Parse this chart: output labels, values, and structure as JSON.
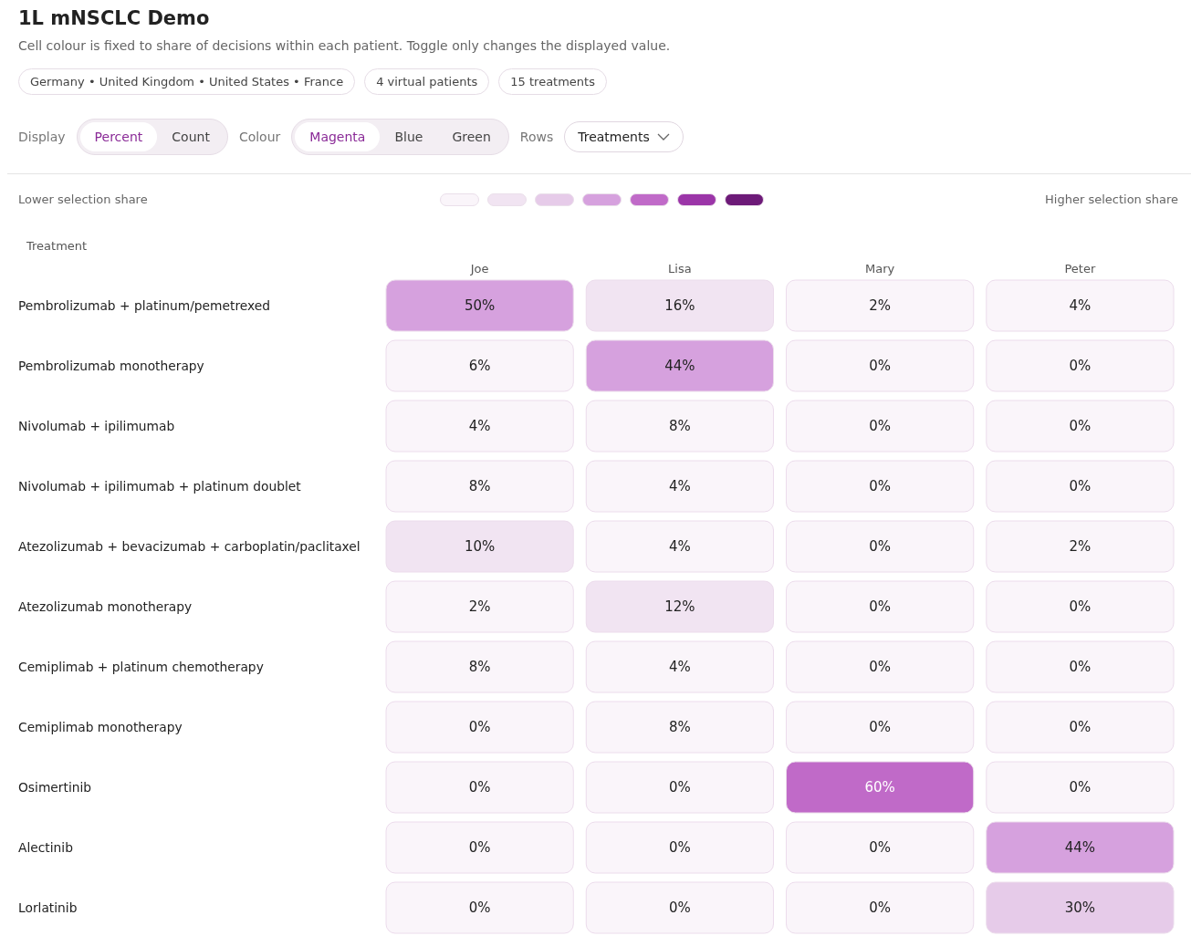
{
  "chart_data": {
    "type": "heatmap",
    "title": "1L mNSCLC Demo",
    "subtitle": "Cell colour is fixed to share of decisions within each patient. Toggle only changes the displayed value.",
    "ylabel": "Treatment",
    "categories": [
      "Joe",
      "Lisa",
      "Mary",
      "Peter"
    ],
    "y_categories": [
      "Pembrolizumab + platinum/pemetrexed",
      "Pembrolizumab monotherapy",
      "Nivolumab + ipilimumab",
      "Nivolumab + ipilimumab + platinum doublet",
      "Atezolizumab + bevacizumab + carboplatin/paclitaxel",
      "Atezolizumab monotherapy",
      "Cemiplimab + platinum chemotherapy",
      "Cemiplimab monotherapy",
      "Osimertinib",
      "Alectinib",
      "Lorlatinib"
    ],
    "cells": [
      [
        50,
        16,
        2,
        4
      ],
      [
        6,
        44,
        0,
        0
      ],
      [
        4,
        8,
        0,
        0
      ],
      [
        8,
        4,
        0,
        0
      ],
      [
        10,
        4,
        0,
        2
      ],
      [
        2,
        12,
        0,
        0
      ],
      [
        8,
        4,
        0,
        0
      ],
      [
        0,
        8,
        0,
        0
      ],
      [
        0,
        0,
        60,
        0
      ],
      [
        0,
        0,
        0,
        44
      ],
      [
        0,
        0,
        0,
        30
      ]
    ],
    "cell_labels": [
      [
        "50%",
        "16%",
        "2%",
        "4%"
      ],
      [
        "6%",
        "44%",
        "0%",
        "0%"
      ],
      [
        "4%",
        "8%",
        "0%",
        "0%"
      ],
      [
        "8%",
        "4%",
        "0%",
        "0%"
      ],
      [
        "10%",
        "4%",
        "0%",
        "2%"
      ],
      [
        "2%",
        "12%",
        "0%",
        "0%"
      ],
      [
        "8%",
        "4%",
        "0%",
        "0%"
      ],
      [
        "0%",
        "8%",
        "0%",
        "0%"
      ],
      [
        "0%",
        "0%",
        "60%",
        "0%"
      ],
      [
        "0%",
        "0%",
        "0%",
        "44%"
      ],
      [
        "0%",
        "0%",
        "0%",
        "30%"
      ]
    ],
    "annotations": [
      "Germany • United Kingdom • United States • France",
      "4 virtual patients",
      "15 treatments",
      "Display",
      "Percent",
      "Count",
      "Colour",
      "Magenta",
      "Blue",
      "Green",
      "Rows",
      "Treatments",
      "Lower selection share",
      "Higher selection share"
    ]
  }
}
